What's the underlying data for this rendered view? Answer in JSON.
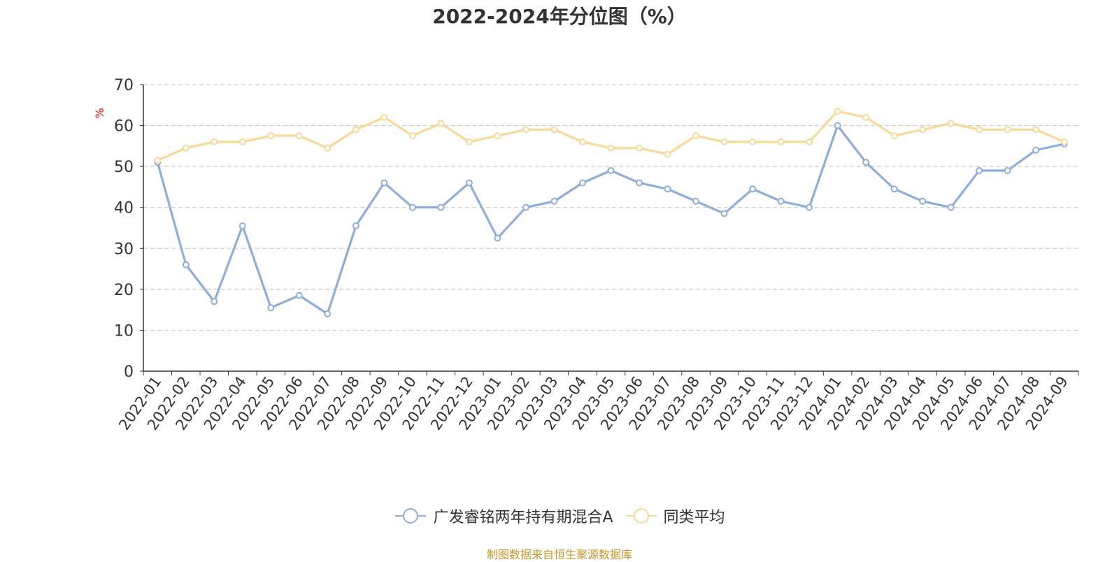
{
  "chart_data": {
    "type": "line",
    "title": "2022-2024年分位图（%）",
    "ylabel": "%",
    "xlabel": "",
    "ylim": [
      0,
      70
    ],
    "yticks": [
      0,
      10,
      20,
      30,
      40,
      50,
      60,
      70
    ],
    "grid": true,
    "legend_position": "bottom",
    "categories": [
      "2022-01",
      "2022-02",
      "2022-03",
      "2022-04",
      "2022-05",
      "2022-06",
      "2022-07",
      "2022-08",
      "2022-09",
      "2022-10",
      "2022-11",
      "2022-12",
      "2023-01",
      "2023-02",
      "2023-03",
      "2023-04",
      "2023-05",
      "2023-06",
      "2023-07",
      "2023-08",
      "2023-09",
      "2023-10",
      "2023-11",
      "2023-12",
      "2024-01",
      "2024-02",
      "2024-03",
      "2024-04",
      "2024-05",
      "2024-06",
      "2024-07",
      "2024-08",
      "2024-09"
    ],
    "series": [
      {
        "name": "广发睿铭两年持有期混合A",
        "color": "#8eaedb",
        "values": [
          51,
          26,
          17,
          35.5,
          15.5,
          18.5,
          14,
          35.5,
          46,
          40,
          40,
          46,
          32.5,
          40,
          41.5,
          46,
          49,
          46,
          44.5,
          41.5,
          38.5,
          44.5,
          41.5,
          40,
          60,
          51,
          44.5,
          41.5,
          40,
          49,
          49,
          54,
          55.5
        ]
      },
      {
        "name": "同类平均",
        "color": "#f9d898",
        "values": [
          51.5,
          54.5,
          56,
          56,
          57.5,
          57.5,
          54.5,
          59,
          62,
          57.5,
          60.5,
          56,
          57.5,
          59,
          59,
          56,
          54.5,
          54.5,
          53,
          57.5,
          56,
          56,
          56,
          56,
          63.5,
          62,
          57.5,
          59,
          60.5,
          59,
          59,
          59,
          56
        ]
      }
    ]
  },
  "source_text": "制图数据来自恒生聚源数据库",
  "colors": {
    "axis": "#333333",
    "grid": "#cccccc",
    "ylabel": "#ff0000",
    "source": "#c8962a"
  }
}
